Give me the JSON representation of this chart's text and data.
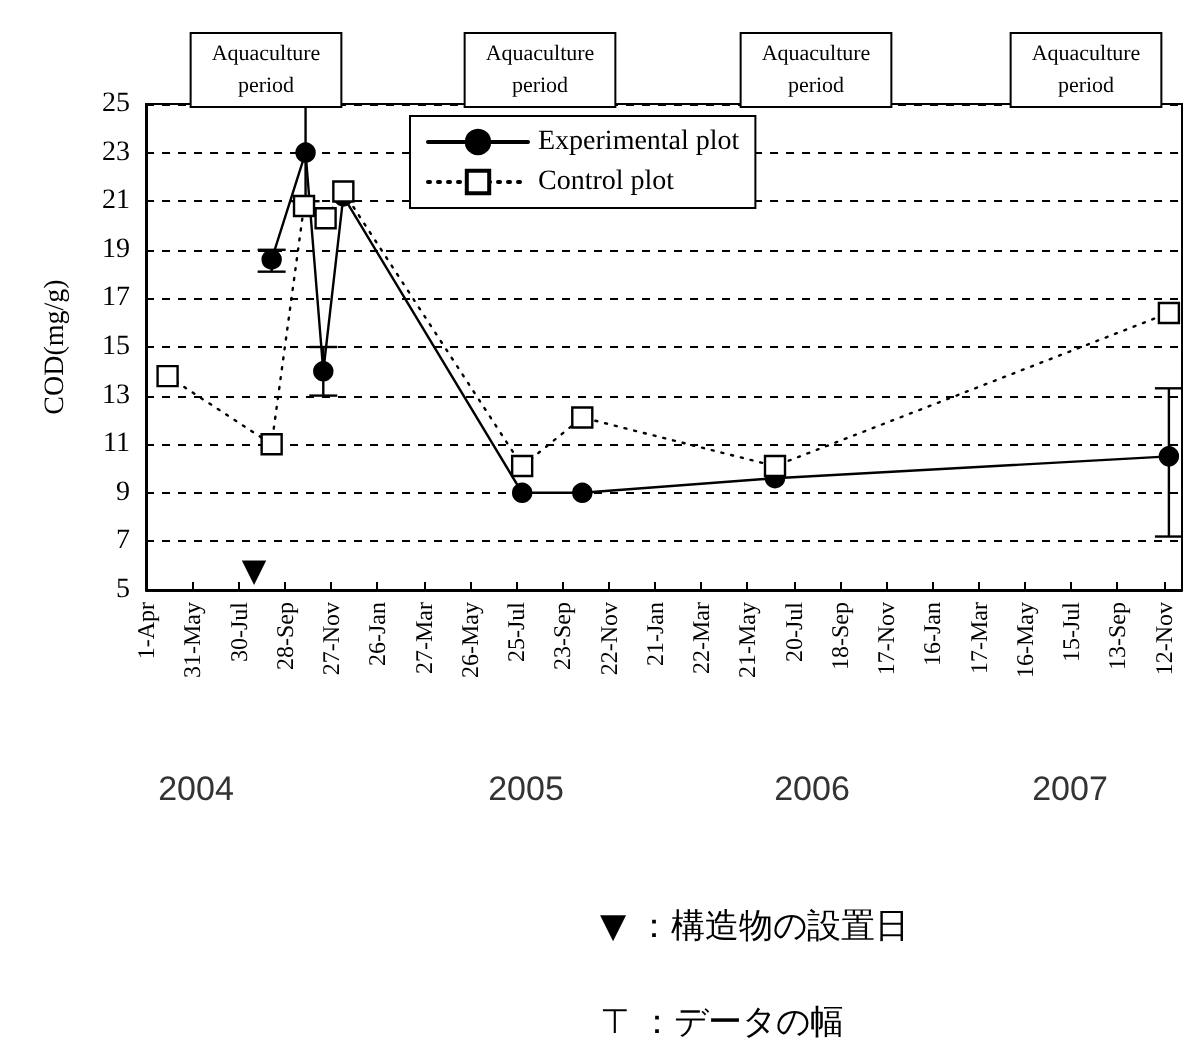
{
  "chart_data": {
    "type": "line",
    "ylabel": "COD(mg/g)",
    "legend": "top",
    "grid": "y",
    "xlim": [
      "2004-04-01",
      "2007-12-06"
    ],
    "ylim": [
      5,
      25
    ],
    "yticks": [
      5,
      7,
      9,
      11,
      13,
      15,
      17,
      19,
      21,
      23,
      25
    ],
    "xticks": [
      {
        "value": "2004-04-01",
        "label": "1-Apr"
      },
      {
        "value": "2004-05-31",
        "label": "31-May"
      },
      {
        "value": "2004-07-30",
        "label": "30-Jul"
      },
      {
        "value": "2004-09-28",
        "label": "28-Sep"
      },
      {
        "value": "2004-11-27",
        "label": "27-Nov"
      },
      {
        "value": "2005-01-26",
        "label": "26-Jan"
      },
      {
        "value": "2005-03-27",
        "label": "27-Mar"
      },
      {
        "value": "2005-05-26",
        "label": "26-May"
      },
      {
        "value": "2005-07-25",
        "label": "25-Jul"
      },
      {
        "value": "2005-09-23",
        "label": "23-Sep"
      },
      {
        "value": "2005-11-22",
        "label": "22-Nov"
      },
      {
        "value": "2006-01-21",
        "label": "21-Jan"
      },
      {
        "value": "2006-03-22",
        "label": "22-Mar"
      },
      {
        "value": "2006-05-21",
        "label": "21-May"
      },
      {
        "value": "2006-07-20",
        "label": "20-Jul"
      },
      {
        "value": "2006-09-18",
        "label": "18-Sep"
      },
      {
        "value": "2006-11-17",
        "label": "17-Nov"
      },
      {
        "value": "2007-01-16",
        "label": "16-Jan"
      },
      {
        "value": "2007-03-17",
        "label": "17-Mar"
      },
      {
        "value": "2007-05-16",
        "label": "16-May"
      },
      {
        "value": "2007-07-15",
        "label": "15-Jul"
      },
      {
        "value": "2007-09-13",
        "label": "13-Sep"
      },
      {
        "value": "2007-11-12",
        "label": "12-Nov"
      }
    ],
    "series": [
      {
        "name": "Experimental plot",
        "color": "#000000",
        "marker": "circle",
        "line_style": "solid",
        "x": [
          "2004-09-11",
          "2004-10-25",
          "2004-11-17",
          "2004-12-13",
          "2005-08-02",
          "2005-10-19",
          "2006-06-26",
          "2007-11-19"
        ],
        "values": [
          18.6,
          23,
          14,
          21.2,
          9,
          9,
          9.6,
          10.5
        ],
        "errors": [
          [
            18.1,
            19
          ],
          [
            21,
            25
          ],
          [
            13,
            15
          ],
          null,
          null,
          null,
          null,
          [
            7.2,
            13.3
          ]
        ]
      },
      {
        "name": "Control plot",
        "color": "#000000",
        "marker": "square",
        "line_style": "dotted",
        "x": [
          "2004-04-29",
          "2004-09-11",
          "2004-10-23",
          "2004-11-20",
          "2004-12-13",
          "2005-08-02",
          "2005-10-19",
          "2006-06-26",
          "2007-11-19"
        ],
        "values": [
          13.8,
          11,
          20.8,
          20.3,
          21.4,
          10.1,
          12.1,
          10.1,
          16.4
        ]
      }
    ],
    "annotations": [
      "Aquaculture\nperiod",
      "Aquaculture\nperiod",
      "Aquaculture\nperiod",
      "Aquaculture\nperiod",
      "▼",
      "2004",
      "2005",
      "2006",
      "2007",
      "▼ ：構造物の設置日",
      "⊤ ：データの幅"
    ]
  }
}
